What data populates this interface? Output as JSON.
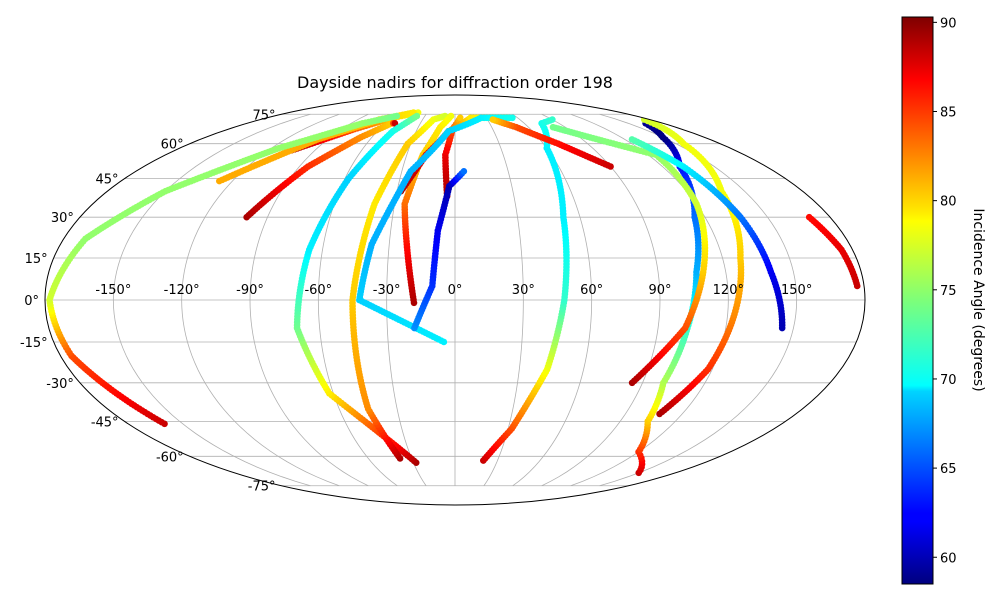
{
  "chart_data": {
    "type": "scatter",
    "projection": "mollweide",
    "title": "Dayside nadirs for diffraction order 198",
    "grid": true,
    "lon_ticks": [
      -150,
      -120,
      -90,
      -60,
      -30,
      0,
      30,
      60,
      90,
      120,
      150
    ],
    "lon_tick_labels": [
      "-150°",
      "-120°",
      "-90°",
      "-60°",
      "-30°",
      "0°",
      "30°",
      "60°",
      "90°",
      "120°",
      "150°"
    ],
    "lat_ticks": [
      75,
      60,
      45,
      30,
      15,
      0,
      -15,
      -30,
      -45,
      -60,
      -75
    ],
    "lat_tick_labels": [
      "75°",
      "60°",
      "45°",
      "30°",
      "15°",
      "0°",
      "-15°",
      "-30°",
      "-45°",
      "-60°",
      "-75°"
    ],
    "colorbar": {
      "label": "Incidence Angle (degrees)",
      "range": [
        58.5,
        90.3
      ],
      "ticks": [
        60,
        65,
        70,
        75,
        80,
        85,
        90
      ],
      "tick_labels": [
        "60",
        "65",
        "70",
        "75",
        "80",
        "85",
        "90"
      ],
      "colormap": "jet",
      "position": "right"
    },
    "series": [
      {
        "points": [
          [
            -105,
            57,
            89
          ],
          [
            -80,
            67,
            84
          ],
          [
            -60,
            73,
            80
          ],
          [
            -40,
            76,
            78
          ]
        ]
      },
      {
        "points": [
          [
            -127,
            44,
            81
          ],
          [
            -97,
            62,
            81
          ],
          [
            -70,
            72,
            80
          ],
          [
            -45,
            76,
            79
          ]
        ]
      },
      {
        "points": [
          [
            -160,
            -46,
            88
          ],
          [
            -175,
            -20,
            84
          ],
          [
            -178,
            0,
            77
          ],
          [
            -170,
            22,
            75
          ],
          [
            -150,
            40,
            75
          ],
          [
            -115,
            58,
            75
          ],
          [
            -80,
            70,
            75
          ],
          [
            -58,
            74,
            74
          ]
        ]
      },
      {
        "points": [
          [
            -100,
            30,
            89
          ],
          [
            -85,
            50,
            85
          ],
          [
            -68,
            63,
            82
          ],
          [
            -55,
            70,
            80
          ],
          [
            -52,
            70,
            88
          ]
        ]
      },
      {
        "points": [
          [
            -28,
            -63,
            89
          ],
          [
            -35,
            -57,
            87
          ],
          [
            -62,
            -34,
            79
          ],
          [
            -70,
            -10,
            74
          ],
          [
            -66,
            18,
            70
          ],
          [
            -58,
            45,
            69
          ],
          [
            -48,
            66,
            71
          ],
          [
            -38,
            74,
            74
          ]
        ]
      },
      {
        "points": [
          [
            -38,
            -61,
            89
          ],
          [
            -45,
            -40,
            82
          ],
          [
            -45,
            0,
            80
          ],
          [
            -40,
            35,
            79
          ],
          [
            -32,
            60,
            80
          ],
          [
            -20,
            72,
            78
          ],
          [
            -10,
            74,
            77
          ]
        ]
      },
      {
        "points": [
          [
            -18,
            -1,
            89
          ],
          [
            -22,
            20,
            86
          ],
          [
            -25,
            35,
            83
          ],
          [
            -20,
            55,
            80
          ],
          [
            -12,
            68,
            79
          ],
          [
            -4,
            74,
            78
          ]
        ]
      },
      {
        "points": [
          [
            -4,
            38,
            89
          ],
          [
            -6,
            55,
            87
          ],
          [
            -2,
            67,
            84
          ],
          [
            5,
            73,
            80
          ]
        ]
      },
      {
        "points": [
          [
            -28,
            40,
            89
          ],
          [
            -18,
            55,
            87
          ],
          [
            -5,
            66,
            83
          ],
          [
            15,
            73,
            79
          ],
          [
            50,
            73,
            78
          ]
        ]
      },
      {
        "points": [
          [
            -5,
            -15,
            70
          ],
          [
            -42,
            0,
            69
          ],
          [
            -38,
            20,
            68
          ],
          [
            -25,
            48,
            68
          ],
          [
            -5,
            66,
            69
          ],
          [
            25,
            73,
            70
          ],
          [
            55,
            73,
            71
          ]
        ]
      },
      {
        "points": [
          [
            -18,
            -10,
            67
          ],
          [
            -10,
            5,
            64
          ],
          [
            -8,
            25,
            62
          ],
          [
            -3,
            42,
            60
          ],
          [
            5,
            48,
            66
          ]
        ]
      },
      {
        "points": [
          [
            20,
            -62,
            88
          ],
          [
            32,
            -48,
            84
          ],
          [
            43,
            -25,
            78
          ],
          [
            48,
            0,
            72
          ],
          [
            52,
            30,
            70
          ],
          [
            60,
            58,
            70
          ],
          [
            75,
            70,
            71
          ],
          [
            90,
            72,
            72
          ]
        ]
      },
      {
        "points": [
          [
            150,
            -68,
            88
          ],
          [
            120,
            -58,
            85
          ],
          [
            105,
            -45,
            80
          ],
          [
            100,
            -30,
            76
          ],
          [
            103,
            -10,
            72
          ],
          [
            107,
            10,
            68
          ],
          [
            115,
            30,
            66
          ],
          [
            130,
            50,
            63
          ],
          [
            150,
            63,
            58.5
          ],
          [
            165,
            70,
            59
          ]
        ]
      },
      {
        "points": [
          [
            108,
            -42,
            89
          ],
          [
            118,
            -25,
            85
          ],
          [
            123,
            -5,
            82
          ],
          [
            128,
            15,
            80
          ],
          [
            138,
            40,
            78
          ],
          [
            155,
            60,
            78
          ],
          [
            175,
            72,
            77
          ]
        ]
      },
      {
        "points": [
          [
            85,
            -30,
            89
          ],
          [
            102,
            -10,
            84
          ],
          [
            110,
            10,
            80
          ],
          [
            120,
            35,
            77
          ],
          [
            125,
            55,
            75
          ],
          [
            80,
            68,
            74
          ]
        ]
      },
      {
        "points": [
          [
            90,
            50,
            88
          ],
          [
            70,
            60,
            86
          ],
          [
            50,
            68,
            84
          ],
          [
            35,
            72,
            80
          ]
        ]
      },
      {
        "points": [
          [
            145,
            -10,
            60
          ],
          [
            140,
            10,
            62
          ],
          [
            137,
            30,
            66
          ],
          [
            132,
            50,
            70
          ],
          [
            125,
            62,
            73
          ]
        ]
      },
      {
        "points": [
          [
            170,
            30,
            86
          ],
          [
            175,
            18,
            87
          ],
          [
            177,
            5,
            88
          ]
        ]
      }
    ]
  }
}
